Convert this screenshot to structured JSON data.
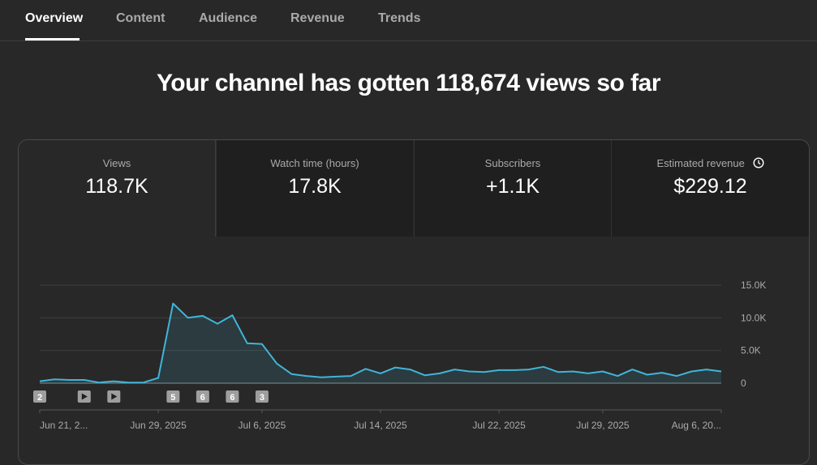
{
  "tabs": [
    "Overview",
    "Content",
    "Audience",
    "Revenue",
    "Trends"
  ],
  "headline": "Your channel has gotten 118,674 views so far",
  "metrics": [
    {
      "label": "Views",
      "value": "118.7K"
    },
    {
      "label": "Watch time (hours)",
      "value": "17.8K"
    },
    {
      "label": "Subscribers",
      "value": "+1.1K"
    },
    {
      "label": "Estimated revenue",
      "value": "$229.12"
    }
  ],
  "chart_data": {
    "type": "line",
    "x": [
      "2025-06-21",
      "2025-06-22",
      "2025-06-23",
      "2025-06-24",
      "2025-06-25",
      "2025-06-26",
      "2025-06-27",
      "2025-06-28",
      "2025-06-29",
      "2025-06-30",
      "2025-07-01",
      "2025-07-02",
      "2025-07-03",
      "2025-07-04",
      "2025-07-05",
      "2025-07-06",
      "2025-07-07",
      "2025-07-08",
      "2025-07-09",
      "2025-07-10",
      "2025-07-11",
      "2025-07-12",
      "2025-07-13",
      "2025-07-14",
      "2025-07-15",
      "2025-07-16",
      "2025-07-17",
      "2025-07-18",
      "2025-07-19",
      "2025-07-20",
      "2025-07-21",
      "2025-07-22",
      "2025-07-23",
      "2025-07-24",
      "2025-07-25",
      "2025-07-26",
      "2025-07-27",
      "2025-07-28",
      "2025-07-29",
      "2025-07-30",
      "2025-07-31",
      "2025-08-01",
      "2025-08-02",
      "2025-08-03",
      "2025-08-04",
      "2025-08-05",
      "2025-08-06"
    ],
    "series": [
      {
        "name": "Views",
        "color": "#41b4d8",
        "values": [
          300,
          600,
          500,
          500,
          100,
          300,
          100,
          100,
          800,
          12200,
          10000,
          10300,
          9100,
          10400,
          6100,
          6000,
          3000,
          1400,
          1100,
          900,
          1000,
          1100,
          2200,
          1500,
          2400,
          2100,
          1200,
          1500,
          2100,
          1800,
          1700,
          2000,
          2000,
          2100,
          2500,
          1700,
          1800,
          1500,
          1800,
          1100,
          2100,
          1300,
          1600,
          1100,
          1800,
          2100,
          1800
        ]
      }
    ],
    "xticks": [
      {
        "value": "2025-06-21",
        "label": "Jun 21, 2..."
      },
      {
        "value": "2025-06-29",
        "label": "Jun 29, 2025"
      },
      {
        "value": "2025-07-06",
        "label": "Jul 6, 2025"
      },
      {
        "value": "2025-07-14",
        "label": "Jul 14, 2025"
      },
      {
        "value": "2025-07-22",
        "label": "Jul 22, 2025"
      },
      {
        "value": "2025-07-29",
        "label": "Jul 29, 2025"
      },
      {
        "value": "2025-08-06",
        "label": "Aug 6, 20..."
      }
    ],
    "ylim": [
      0,
      15000
    ],
    "yticks": [
      0,
      {
        "value": 5000,
        "label": "5.0K"
      },
      {
        "value": 10000,
        "label": "10.0K"
      },
      {
        "value": 15000,
        "label": "15.0K"
      }
    ],
    "grid": true,
    "markers": [
      {
        "x": "2025-06-21",
        "label": "2"
      },
      {
        "x": "2025-06-24",
        "icon": "play"
      },
      {
        "x": "2025-06-26",
        "icon": "play"
      },
      {
        "x": "2025-06-30",
        "label": "5"
      },
      {
        "x": "2025-07-02",
        "label": "6"
      },
      {
        "x": "2025-07-04",
        "label": "6"
      },
      {
        "x": "2025-07-06",
        "label": "3"
      }
    ]
  }
}
